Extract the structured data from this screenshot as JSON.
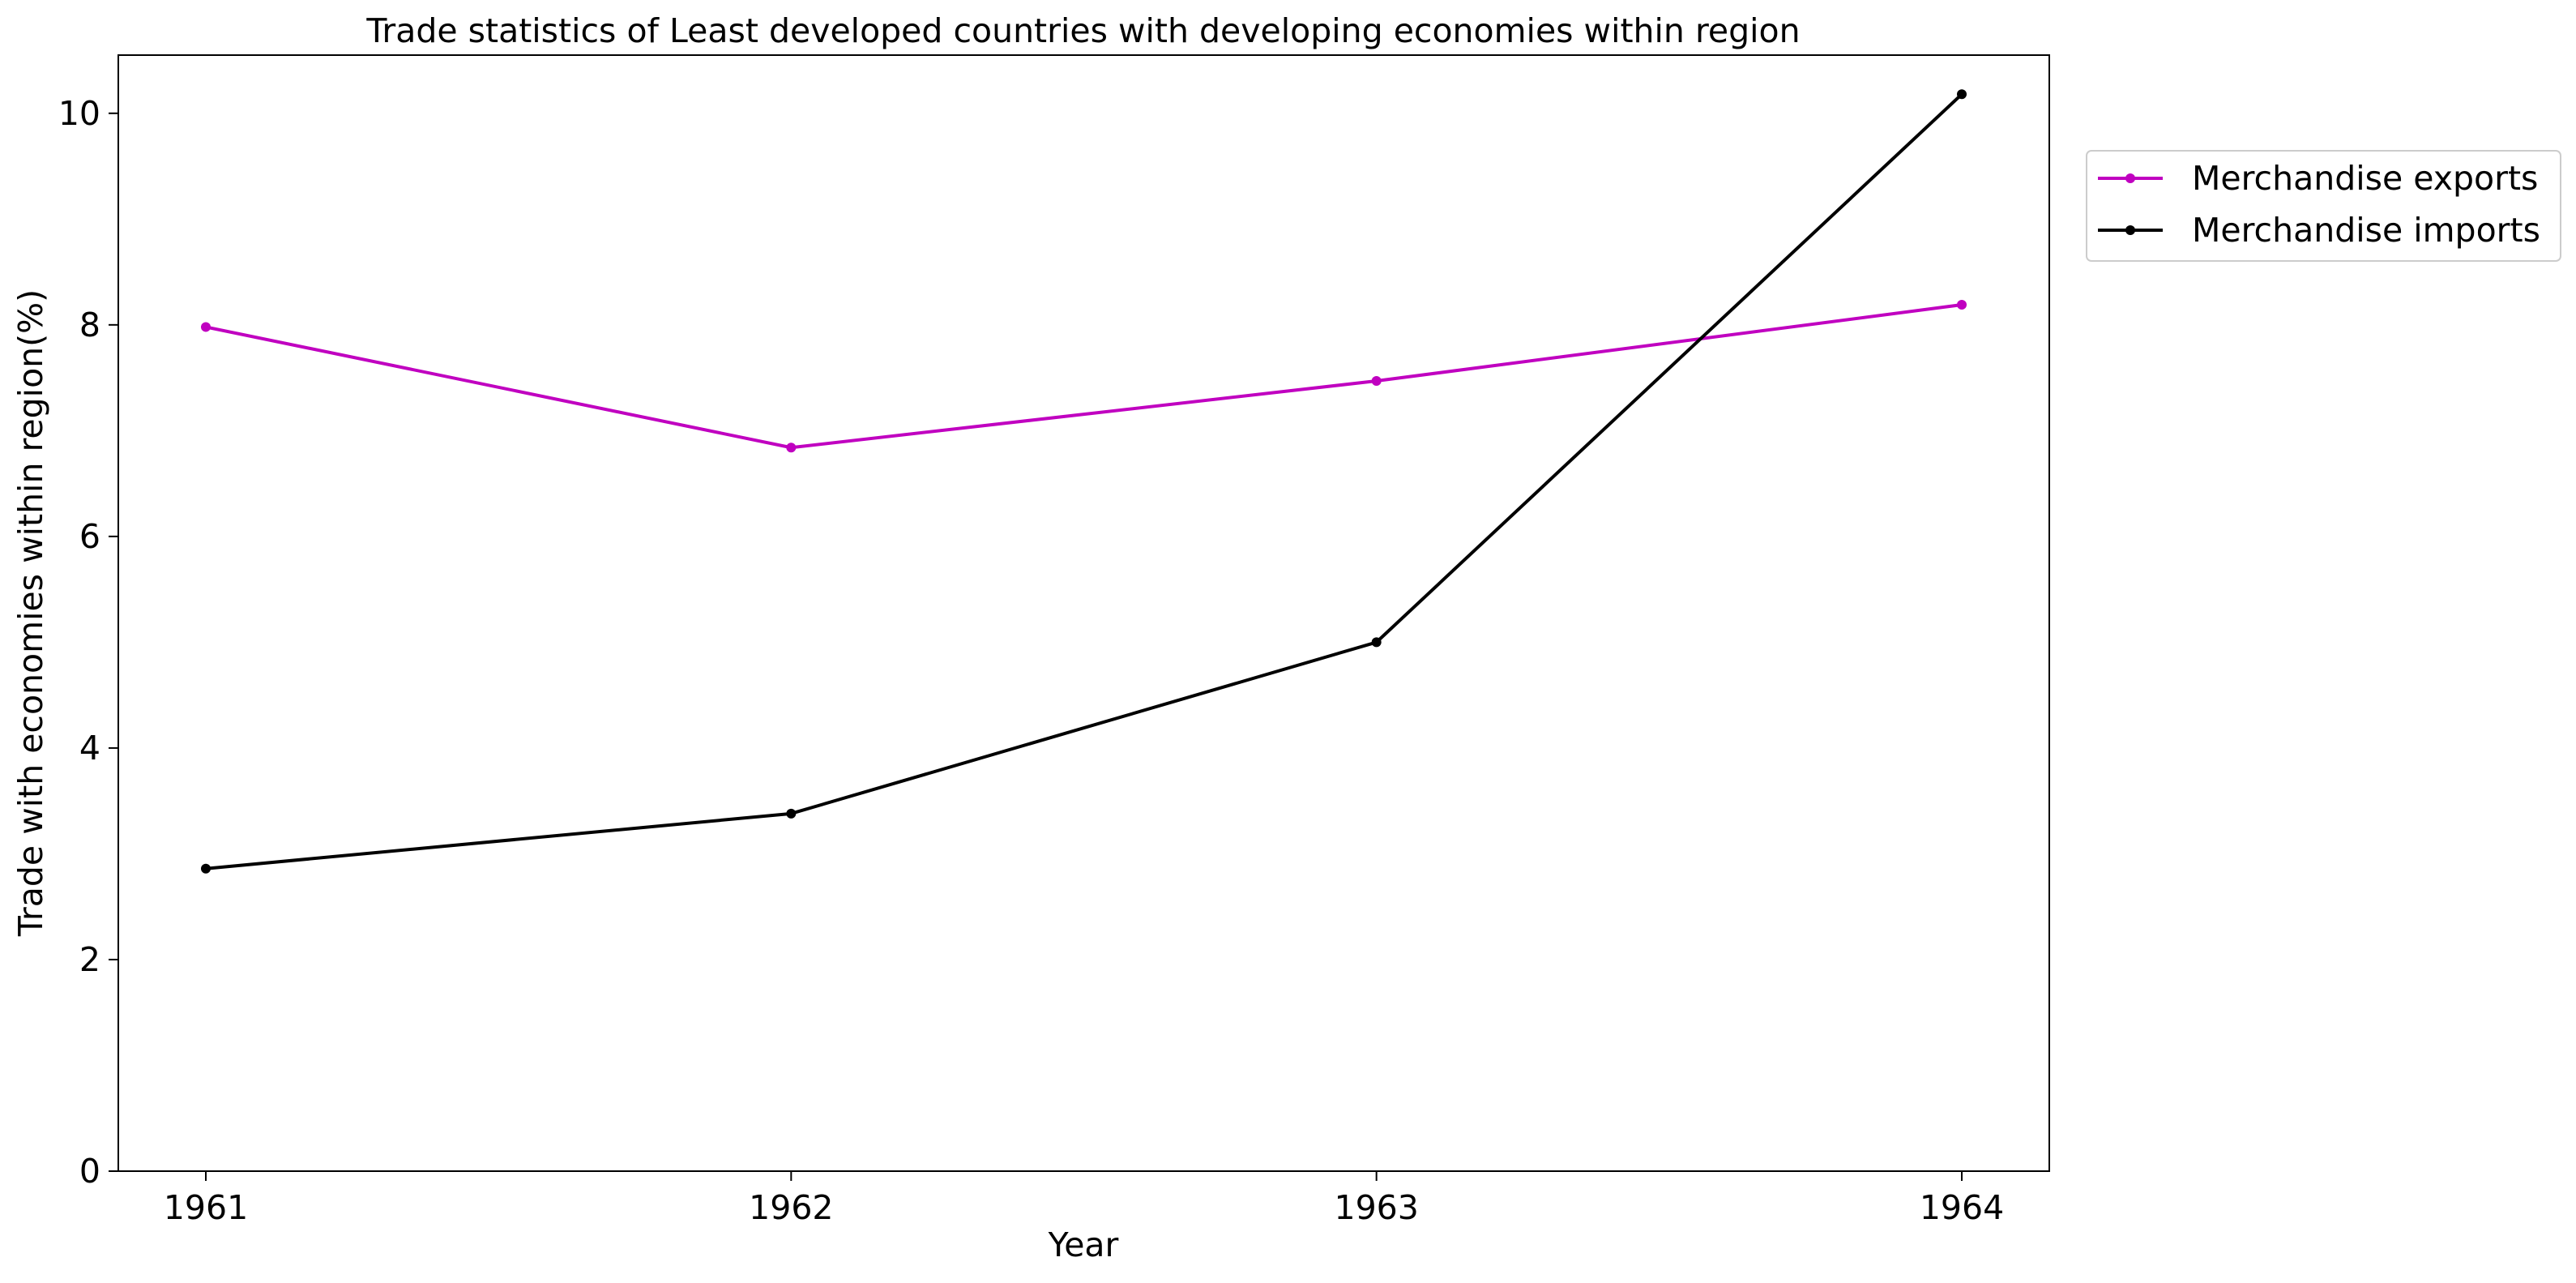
{
  "chart_data": {
    "type": "line",
    "title": "Trade statistics of Least developed countries with developing economies within region",
    "xlabel": "Year",
    "ylabel": "Trade with economies within region(%)",
    "x": [
      "1961",
      "1962",
      "1963",
      "1964"
    ],
    "ylim": [
      0,
      10.55
    ],
    "yticks": [
      0,
      2,
      4,
      6,
      8,
      10
    ],
    "legend_position": "upper-right-outside",
    "series": [
      {
        "name": "Merchandise exports",
        "color": "#c000c0",
        "values": [
          7.98,
          6.84,
          7.47,
          8.19
        ]
      },
      {
        "name": "Merchandise imports",
        "color": "#000000",
        "values": [
          2.86,
          3.38,
          5.0,
          10.18
        ]
      }
    ]
  }
}
